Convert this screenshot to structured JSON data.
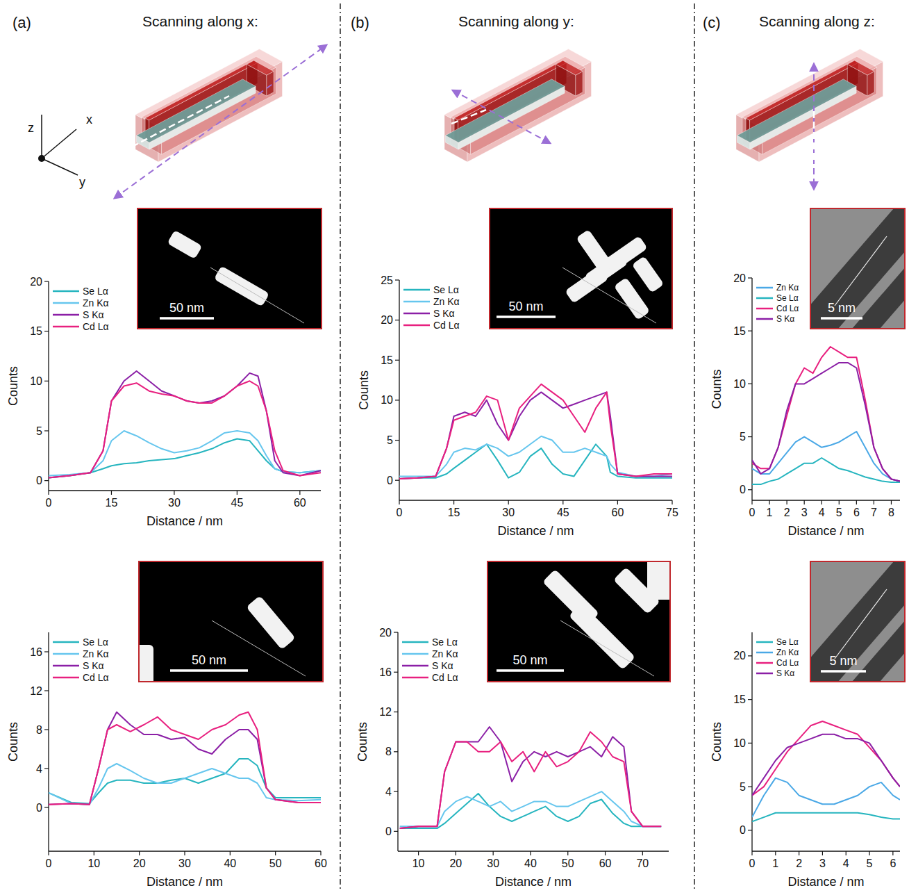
{
  "panels": [
    {
      "letter": "(a)",
      "title": "Scanning along x:"
    },
    {
      "letter": "(b)",
      "title": "Scanning along y:"
    },
    {
      "letter": "(c)",
      "title": "Scanning along z:"
    }
  ],
  "axes_labels": {
    "x": "x",
    "y": "y",
    "z": "z"
  },
  "chart_data": [
    {
      "type": "line",
      "x_label": "Distance / nm",
      "y_label": "Counts",
      "scale_bar": "50 nm",
      "legend": "upper left",
      "xlim": [
        0,
        65
      ],
      "ylim": [
        -1,
        20
      ],
      "xticks": [
        0,
        15,
        30,
        45,
        60
      ],
      "yticks": [
        0,
        5,
        10,
        15,
        20
      ],
      "x": [
        0,
        5,
        10,
        13,
        15,
        18,
        21,
        24,
        27,
        30,
        33,
        36,
        39,
        42,
        45,
        48,
        50,
        52,
        54,
        56,
        60,
        65
      ],
      "series": [
        {
          "name": "Se Lα",
          "color": "#26b5bf",
          "values": [
            0.3,
            0.5,
            0.8,
            1.2,
            1.5,
            1.7,
            1.8,
            2,
            2.1,
            2.2,
            2.5,
            2.8,
            3.2,
            3.8,
            4.2,
            4,
            3,
            2,
            1.2,
            0.9,
            0.8,
            1
          ]
        },
        {
          "name": "Zn Kα",
          "color": "#66c6ee",
          "values": [
            0.5,
            0.6,
            0.8,
            2,
            4,
            5,
            4.5,
            3.8,
            3.2,
            2.8,
            3,
            3.3,
            4,
            4.8,
            5,
            4.8,
            4,
            2.5,
            1.2,
            0.9,
            0.8,
            1
          ]
        },
        {
          "name": "S Kα",
          "color": "#8b1fa6",
          "values": [
            0.3,
            0.5,
            0.8,
            3,
            8,
            10,
            11,
            10,
            9,
            8.5,
            8,
            7.8,
            8,
            8.5,
            9.5,
            10.8,
            10.5,
            7,
            2,
            0.8,
            0.5,
            1
          ]
        },
        {
          "name": "Cd Lα",
          "color": "#e8207f",
          "values": [
            0.3,
            0.5,
            0.8,
            3,
            8,
            9.5,
            9.8,
            9,
            8.7,
            8.5,
            8,
            7.8,
            7.8,
            8.5,
            9.5,
            10,
            9.5,
            7,
            3,
            1,
            0.5,
            0.8
          ]
        }
      ]
    },
    {
      "type": "line",
      "x_label": "Distance / nm",
      "y_label": "Counts",
      "scale_bar": "50 nm",
      "legend": "upper left",
      "xlim": [
        0,
        60
      ],
      "ylim": [
        -4.5,
        18
      ],
      "xticks": [
        0,
        10,
        20,
        30,
        40,
        50,
        60
      ],
      "yticks": [
        0,
        4,
        8,
        12,
        16
      ],
      "x": [
        0,
        5,
        9,
        11,
        13,
        15,
        18,
        21,
        24,
        27,
        30,
        33,
        36,
        39,
        42,
        44,
        46,
        48,
        50,
        55,
        60
      ],
      "series": [
        {
          "name": "Se Lα",
          "color": "#26b5bf",
          "values": [
            1.5,
            0.5,
            0.4,
            1.5,
            2.5,
            2.8,
            2.8,
            2.5,
            2.5,
            2.8,
            3,
            2.5,
            3,
            3.5,
            5,
            5,
            4.3,
            2,
            1,
            1,
            1
          ]
        },
        {
          "name": "Zn Kα",
          "color": "#66c6ee",
          "values": [
            1.5,
            0.4,
            0.3,
            2,
            4,
            4.5,
            3.8,
            3,
            2.5,
            2.5,
            3,
            3.5,
            4,
            3.5,
            3,
            3,
            2.5,
            1,
            0.8,
            0.7,
            0.8
          ]
        },
        {
          "name": "S Kα",
          "color": "#8b1fa6",
          "values": [
            0.3,
            0.4,
            0.3,
            4,
            8,
            9.8,
            8.5,
            7.5,
            7.5,
            7,
            7.2,
            6,
            5.5,
            7,
            8,
            8,
            7,
            2,
            0.8,
            0.5,
            0.5
          ]
        },
        {
          "name": "Cd Lα",
          "color": "#e8207f",
          "values": [
            0.3,
            0.4,
            0.3,
            4,
            8,
            8.5,
            7.8,
            8.5,
            9.3,
            8,
            7.5,
            7,
            8,
            8.5,
            9.5,
            9.8,
            8,
            2,
            0.8,
            0.5,
            0.5
          ]
        }
      ]
    },
    {
      "type": "line",
      "x_label": "Distance / nm",
      "y_label": "Counts",
      "scale_bar": "50 nm",
      "legend": "upper left",
      "xlim": [
        0,
        75
      ],
      "ylim": [
        -2.5,
        25
      ],
      "xticks": [
        0,
        15,
        30,
        45,
        60,
        75
      ],
      "yticks": [
        0,
        5,
        10,
        15,
        20,
        25
      ],
      "x": [
        0,
        5,
        10,
        13,
        15,
        18,
        21,
        24,
        27,
        30,
        33,
        36,
        39,
        42,
        45,
        48,
        51,
        54,
        57,
        58,
        60,
        65,
        70,
        75
      ],
      "series": [
        {
          "name": "Se Lα",
          "color": "#26b5bf",
          "values": [
            0.2,
            0.3,
            0.3,
            0.8,
            1.5,
            2.5,
            3.5,
            4.5,
            2.5,
            0.3,
            1,
            3,
            4,
            2,
            0.8,
            0.5,
            2.5,
            4.5,
            3,
            1,
            0.5,
            0.3,
            0.3,
            0.3
          ]
        },
        {
          "name": "Zn Kα",
          "color": "#66c6ee",
          "values": [
            0.5,
            0.5,
            0.5,
            2,
            3.5,
            4,
            3.8,
            4.5,
            4,
            3,
            3.5,
            4.5,
            5.5,
            5,
            3.5,
            3.5,
            4,
            3.5,
            3,
            2,
            1,
            0.5,
            0.5,
            0.8
          ]
        },
        {
          "name": "S Kα",
          "color": "#8b1fa6",
          "values": [
            0.2,
            0.3,
            0.5,
            4,
            8,
            8.5,
            8,
            10,
            7,
            5,
            8,
            10,
            11,
            10,
            9,
            9.5,
            10,
            10.5,
            11,
            8,
            0.8,
            0.5,
            0.5,
            0.5
          ]
        },
        {
          "name": "Cd Lα",
          "color": "#e8207f",
          "values": [
            0.2,
            0.3,
            0.5,
            4,
            7.5,
            8,
            8.5,
            10.5,
            10,
            5,
            9,
            10.5,
            12,
            11,
            10,
            8,
            6,
            9,
            11,
            7,
            0.8,
            0.5,
            0.8,
            0.8
          ]
        }
      ]
    },
    {
      "type": "line",
      "x_label": "Distance / nm",
      "y_label": "Counts",
      "scale_bar": "50 nm",
      "legend": "upper left",
      "xlim": [
        4.5,
        77
      ],
      "ylim": [
        -2,
        20
      ],
      "xticks": [
        10,
        20,
        30,
        40,
        50,
        60,
        70
      ],
      "yticks": [
        0,
        4,
        8,
        12,
        16,
        20
      ],
      "x": [
        5,
        10,
        15,
        17,
        20,
        23,
        26,
        29,
        32,
        35,
        38,
        41,
        44,
        47,
        50,
        53,
        56,
        59,
        62,
        65,
        67,
        70,
        75
      ],
      "series": [
        {
          "name": "Se Lα",
          "color": "#26b5bf",
          "values": [
            0.3,
            0.3,
            0.3,
            0.8,
            1.8,
            2.8,
            3.8,
            2.5,
            1.5,
            1,
            1.5,
            2,
            2.5,
            1.5,
            1,
            1.5,
            2.8,
            3.2,
            1.8,
            0.8,
            0.5,
            0.5,
            0.5
          ]
        },
        {
          "name": "Zn Kα",
          "color": "#66c6ee",
          "values": [
            0.5,
            0.5,
            0.5,
            2,
            3,
            3.5,
            3,
            2.5,
            3,
            2,
            2.5,
            3,
            3,
            2.5,
            2.5,
            3,
            3.5,
            4,
            3,
            2,
            1,
            0.5,
            0.5
          ]
        },
        {
          "name": "S Kα",
          "color": "#8b1fa6",
          "values": [
            0.3,
            0.5,
            0.5,
            6,
            9,
            9,
            9,
            10.5,
            9,
            5,
            7,
            8,
            7.5,
            8,
            7.5,
            8,
            8.5,
            7.5,
            9.5,
            8.5,
            2,
            0.5,
            0.5
          ]
        },
        {
          "name": "Cd Lα",
          "color": "#e8207f",
          "values": [
            0.3,
            0.5,
            0.5,
            6,
            9,
            9,
            8,
            8,
            9,
            7,
            8,
            6,
            8,
            6.5,
            7,
            8,
            10,
            9,
            7.5,
            7,
            2,
            0.5,
            0.5
          ]
        }
      ]
    },
    {
      "type": "line",
      "x_label": "Distance / nm",
      "y_label": "Counts",
      "scale_bar": "5 nm",
      "legend": "upper left",
      "xlim": [
        0,
        8.5
      ],
      "ylim": [
        -1,
        20
      ],
      "xticks": [
        0,
        1,
        2,
        3,
        4,
        5,
        6,
        7,
        8
      ],
      "yticks": [
        0,
        5,
        10,
        15,
        20
      ],
      "x": [
        0,
        0.5,
        1,
        1.5,
        2,
        2.5,
        3,
        3.5,
        4,
        4.5,
        5,
        5.5,
        6,
        6.5,
        7,
        7.5,
        8,
        8.5
      ],
      "series": [
        {
          "name": "Zn Kα",
          "color": "#4aa8e6",
          "values": [
            2,
            1.5,
            1.5,
            2.5,
            3.5,
            4.5,
            5,
            4.5,
            4,
            4.2,
            4.5,
            5,
            5.5,
            4,
            2.5,
            1.5,
            1,
            0.8
          ]
        },
        {
          "name": "Se Lα",
          "color": "#26b5bf",
          "values": [
            0.5,
            0.5,
            0.8,
            1,
            1.5,
            2,
            2.5,
            2.5,
            3,
            2.5,
            2,
            1.8,
            1.5,
            1.2,
            1,
            0.8,
            0.7,
            0.7
          ]
        },
        {
          "name": "Cd Lα",
          "color": "#e8207f",
          "values": [
            2.5,
            2,
            2,
            4,
            7,
            10,
            11.5,
            11,
            12.5,
            13.5,
            13,
            12.5,
            12.5,
            8.5,
            4,
            2,
            1,
            0.8
          ]
        },
        {
          "name": "S Kα",
          "color": "#8b1fa6",
          "values": [
            2.8,
            1.5,
            2,
            4,
            7.5,
            10,
            10,
            10.5,
            11,
            11.5,
            12,
            12,
            11.5,
            8,
            4,
            2,
            1,
            0.8
          ]
        }
      ]
    },
    {
      "type": "line",
      "x_label": "Distance / nm",
      "y_label": "Counts",
      "scale_bar": "5 nm",
      "legend": "upper left",
      "xlim": [
        0,
        6.3
      ],
      "ylim": [
        -2.4,
        22.7
      ],
      "xticks": [
        0,
        1,
        2,
        3,
        4,
        5,
        6
      ],
      "yticks": [
        0,
        5,
        10,
        15,
        20
      ],
      "x": [
        0,
        0.5,
        1,
        1.5,
        2,
        2.5,
        3,
        3.5,
        4,
        4.5,
        5,
        5.5,
        6,
        6.3
      ],
      "series": [
        {
          "name": "Se Lα",
          "color": "#26b5bf",
          "values": [
            1,
            1.5,
            2,
            2,
            2,
            2,
            2,
            2,
            2,
            2,
            1.8,
            1.5,
            1.3,
            1.3
          ]
        },
        {
          "name": "Zn Kα",
          "color": "#4aa8e6",
          "values": [
            1.5,
            4,
            6,
            5.5,
            4,
            3.5,
            3,
            3,
            3.5,
            4,
            5,
            5.5,
            4,
            3.5
          ]
        },
        {
          "name": "Cd Lα",
          "color": "#e8207f",
          "values": [
            4,
            5,
            7,
            9,
            10.5,
            12,
            12.5,
            12,
            11.5,
            11,
            9.5,
            8,
            6,
            5
          ]
        },
        {
          "name": "S Kα",
          "color": "#8b1fa6",
          "values": [
            4,
            6,
            8,
            9.5,
            10,
            10.5,
            11,
            11,
            10.5,
            10.5,
            10,
            8,
            6,
            5
          ]
        }
      ]
    }
  ]
}
